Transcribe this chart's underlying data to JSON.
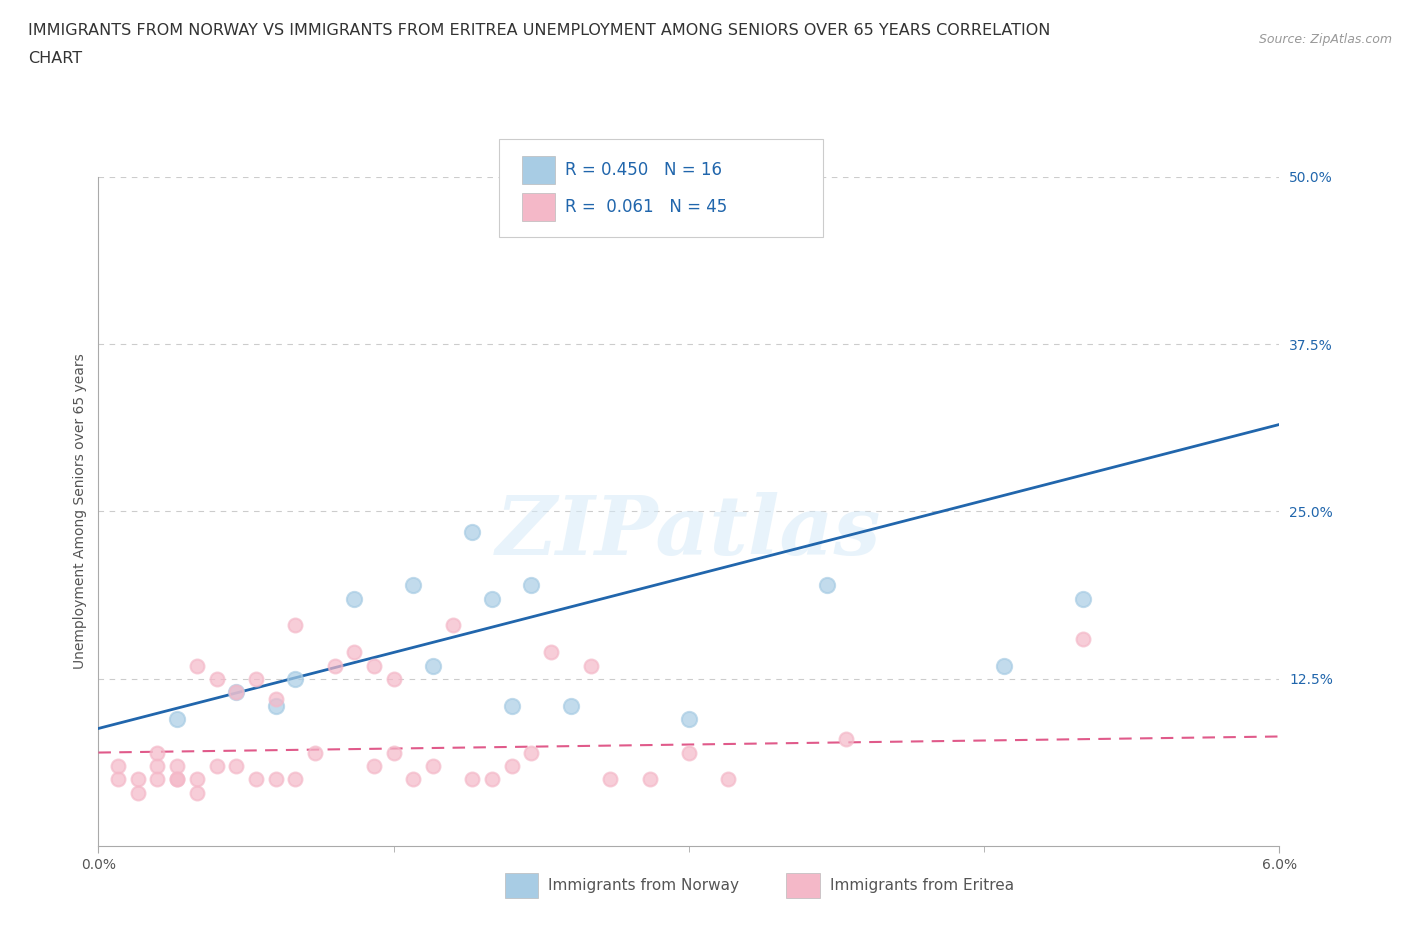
{
  "title_line1": "IMMIGRANTS FROM NORWAY VS IMMIGRANTS FROM ERITREA UNEMPLOYMENT AMONG SENIORS OVER 65 YEARS CORRELATION",
  "title_line2": "CHART",
  "source": "Source: ZipAtlas.com",
  "ylabel": "Unemployment Among Seniors over 65 years",
  "legend_label1": "Immigrants from Norway",
  "legend_label2": "Immigrants from Eritrea",
  "R1": 0.45,
  "N1": 16,
  "R2": 0.061,
  "N2": 45,
  "color_norway": "#a8cce4",
  "color_eritrea": "#f4b8c8",
  "color_norway_line": "#3a7bbf",
  "color_eritrea_line": "#e87fa0",
  "color_norway_line_dark": "#2166ac",
  "color_eritrea_line_dark": "#e05a8a",
  "xlim": [
    0.0,
    0.06
  ],
  "ylim": [
    0.0,
    0.5
  ],
  "watermark_text": "ZIPatlas",
  "background_color": "#ffffff",
  "grid_color": "#cccccc",
  "title_fontsize": 11.5,
  "axis_label_fontsize": 10,
  "tick_fontsize": 10,
  "legend_fontsize": 12,
  "norway_x": [
    0.004,
    0.007,
    0.009,
    0.01,
    0.013,
    0.016,
    0.017,
    0.019,
    0.02,
    0.021,
    0.022,
    0.024,
    0.03,
    0.037,
    0.046,
    0.05
  ],
  "norway_y": [
    0.095,
    0.115,
    0.105,
    0.125,
    0.185,
    0.195,
    0.135,
    0.235,
    0.185,
    0.105,
    0.195,
    0.105,
    0.095,
    0.195,
    0.135,
    0.185
  ],
  "eritrea_x": [
    0.001,
    0.001,
    0.002,
    0.002,
    0.003,
    0.003,
    0.003,
    0.004,
    0.004,
    0.004,
    0.005,
    0.005,
    0.005,
    0.006,
    0.006,
    0.007,
    0.007,
    0.008,
    0.008,
    0.009,
    0.009,
    0.01,
    0.01,
    0.011,
    0.012,
    0.013,
    0.014,
    0.014,
    0.015,
    0.015,
    0.016,
    0.017,
    0.018,
    0.019,
    0.02,
    0.021,
    0.022,
    0.023,
    0.025,
    0.026,
    0.028,
    0.03,
    0.032,
    0.038,
    0.05
  ],
  "eritrea_y": [
    0.05,
    0.06,
    0.04,
    0.05,
    0.05,
    0.06,
    0.07,
    0.05,
    0.05,
    0.06,
    0.04,
    0.05,
    0.135,
    0.06,
    0.125,
    0.06,
    0.115,
    0.05,
    0.125,
    0.05,
    0.11,
    0.165,
    0.05,
    0.07,
    0.135,
    0.145,
    0.06,
    0.135,
    0.07,
    0.125,
    0.05,
    0.06,
    0.165,
    0.05,
    0.05,
    0.06,
    0.07,
    0.145,
    0.135,
    0.05,
    0.05,
    0.07,
    0.05,
    0.08,
    0.155
  ],
  "norway_trend_x": [
    0.0,
    0.06
  ],
  "norway_trend_y": [
    0.088,
    0.315
  ],
  "eritrea_trend_x": [
    0.0,
    0.06
  ],
  "eritrea_trend_y": [
    0.07,
    0.082
  ]
}
